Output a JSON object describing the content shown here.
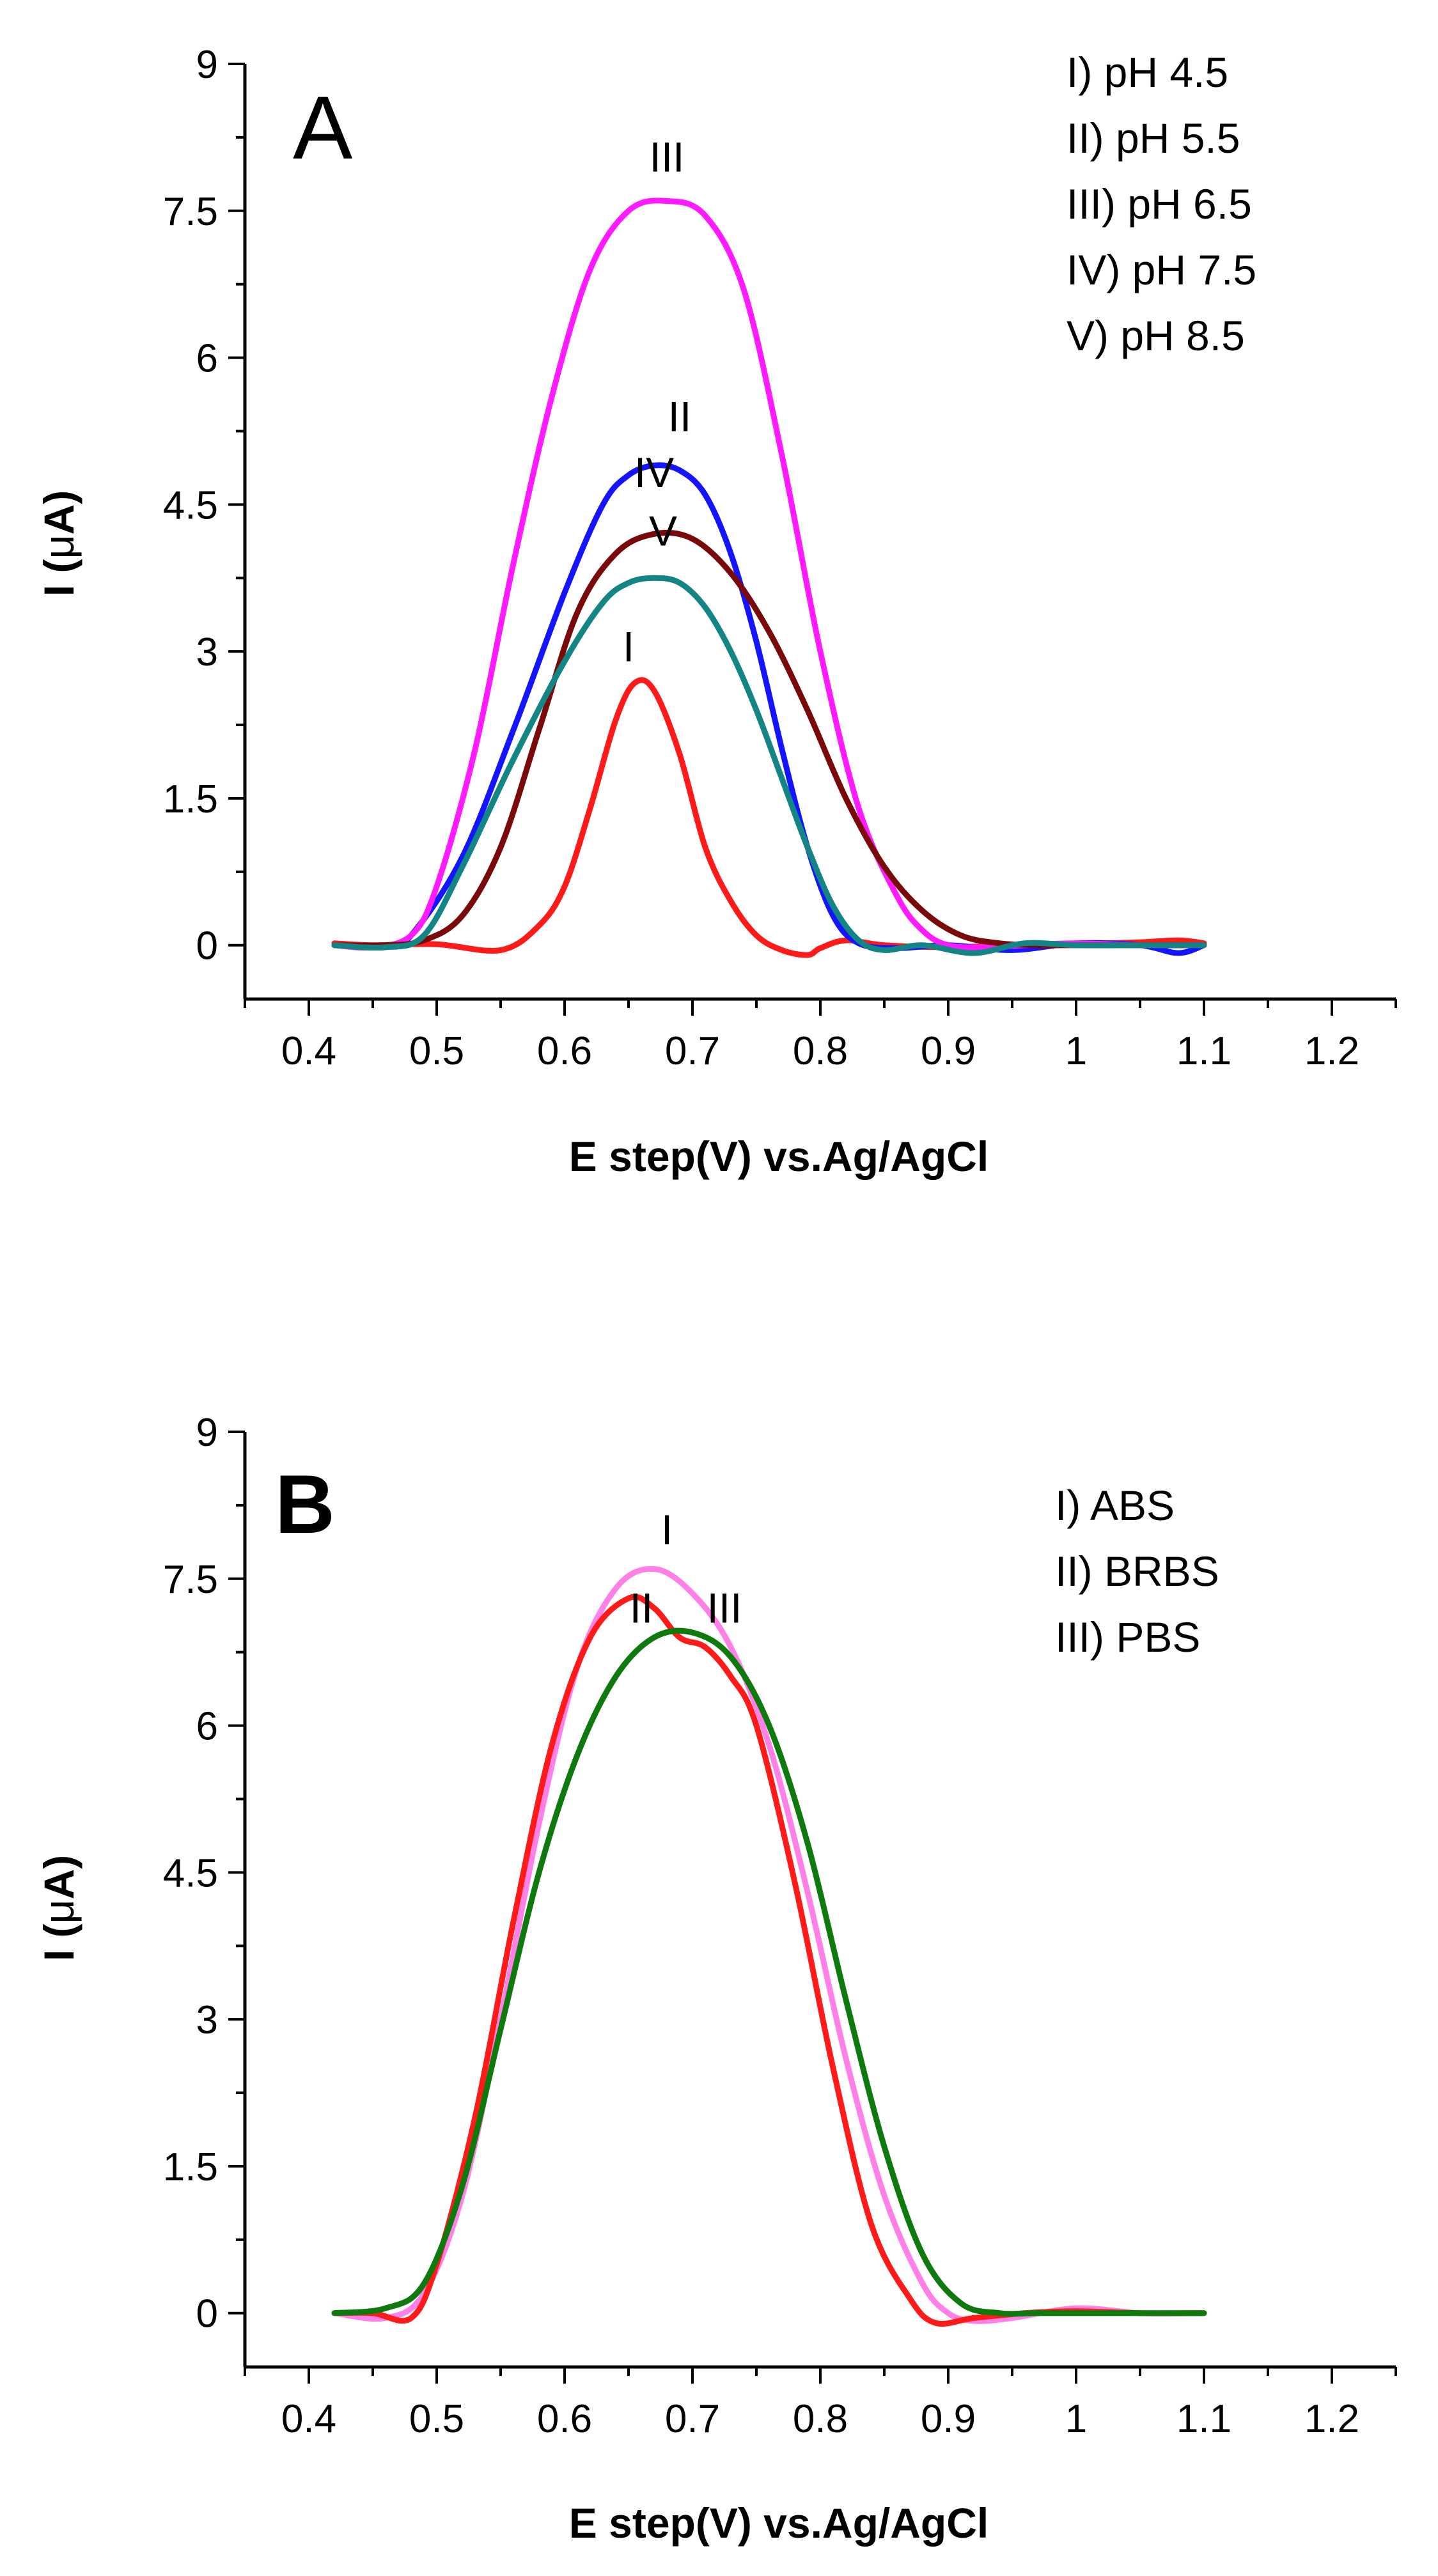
{
  "chart_data": [
    {
      "type": "line",
      "panel_letter": "A",
      "xlabel": "E step(V) vs.Ag/AgCl",
      "ylabel_prefix": "I (",
      "ylabel_greek": "μ",
      "ylabel_suffix": "A)",
      "xlim": [
        0.35,
        1.25
      ],
      "ylim": [
        -0.55,
        9
      ],
      "xticks": [
        0.4,
        0.5,
        0.6,
        0.7,
        0.8,
        0.9,
        1.0,
        1.1,
        1.2
      ],
      "xtick_labels": [
        "0.4",
        "0.5",
        "0.6",
        "0.7",
        "0.8",
        "0.9",
        "1",
        "1.1",
        "1.2"
      ],
      "yticks": [
        0,
        1.5,
        3,
        4.5,
        6,
        7.5,
        9
      ],
      "ytick_labels": [
        "0",
        "1.5",
        "3",
        "4.5",
        "6",
        "7.5",
        "9"
      ],
      "legend_placement": "top-right",
      "legend": [
        "I) pH 4.5",
        "II) pH 5.5",
        "III) pH 6.5",
        "IV) pH 7.5",
        "V) pH 8.5"
      ],
      "series": [
        {
          "name": "I",
          "color": "#ff1a1a",
          "label_at": [
            0.65,
            2.9
          ],
          "x": [
            0.42,
            0.45,
            0.5,
            0.55,
            0.58,
            0.6,
            0.62,
            0.64,
            0.655,
            0.67,
            0.69,
            0.71,
            0.73,
            0.75,
            0.77,
            0.79,
            0.8,
            0.82,
            0.85,
            0.9,
            0.95,
            1.0,
            1.05,
            1.08,
            1.1
          ],
          "y": [
            0.02,
            0.0,
            0.01,
            -0.05,
            0.2,
            0.6,
            1.4,
            2.3,
            2.68,
            2.6,
            1.95,
            1.0,
            0.45,
            0.1,
            -0.05,
            -0.1,
            -0.03,
            0.05,
            0.0,
            -0.02,
            0.0,
            0.01,
            0.03,
            0.05,
            0.02
          ]
        },
        {
          "name": "II",
          "color": "#1414ff",
          "label_at": [
            0.69,
            5.25
          ],
          "x": [
            0.42,
            0.46,
            0.48,
            0.52,
            0.56,
            0.6,
            0.63,
            0.65,
            0.67,
            0.69,
            0.71,
            0.73,
            0.75,
            0.77,
            0.79,
            0.81,
            0.83,
            0.86,
            0.9,
            0.95,
            1.0,
            1.05,
            1.08,
            1.1
          ],
          "y": [
            0.0,
            -0.02,
            0.1,
            0.9,
            2.2,
            3.6,
            4.5,
            4.8,
            4.9,
            4.85,
            4.6,
            4.0,
            3.1,
            2.0,
            1.0,
            0.3,
            0.02,
            -0.03,
            0.0,
            -0.05,
            0.02,
            0.0,
            -0.08,
            0.0
          ]
        },
        {
          "name": "III",
          "color": "#ff1aff",
          "label_at": [
            0.68,
            7.9
          ],
          "x": [
            0.42,
            0.45,
            0.48,
            0.5,
            0.53,
            0.56,
            0.59,
            0.62,
            0.65,
            0.68,
            0.71,
            0.74,
            0.77,
            0.8,
            0.83,
            0.86,
            0.88,
            0.9,
            0.93,
            0.96,
            1.0,
            1.05,
            1.1
          ],
          "y": [
            0.0,
            -0.02,
            0.1,
            0.6,
            2.0,
            3.9,
            5.6,
            6.9,
            7.5,
            7.6,
            7.45,
            6.7,
            5.0,
            3.0,
            1.4,
            0.5,
            0.15,
            0.0,
            -0.02,
            0.0,
            0.02,
            0.0,
            0.0
          ]
        },
        {
          "name": "IV",
          "color": "#7a0a0a",
          "label_at": [
            0.67,
            4.68
          ],
          "x": [
            0.42,
            0.46,
            0.49,
            0.52,
            0.55,
            0.58,
            0.61,
            0.64,
            0.67,
            0.7,
            0.73,
            0.76,
            0.79,
            0.82,
            0.85,
            0.88,
            0.91,
            0.94,
            0.97,
            1.0,
            1.05,
            1.1
          ],
          "y": [
            0.0,
            0.0,
            0.05,
            0.3,
            1.0,
            2.2,
            3.4,
            4.0,
            4.2,
            4.15,
            3.8,
            3.2,
            2.4,
            1.5,
            0.8,
            0.35,
            0.1,
            0.02,
            0.0,
            0.0,
            0.0,
            0.0
          ]
        },
        {
          "name": "V",
          "color": "#138585",
          "label_at": [
            0.677,
            4.08
          ],
          "x": [
            0.42,
            0.46,
            0.49,
            0.52,
            0.56,
            0.6,
            0.63,
            0.65,
            0.67,
            0.69,
            0.71,
            0.73,
            0.75,
            0.77,
            0.79,
            0.81,
            0.83,
            0.85,
            0.88,
            0.92,
            0.96,
            1.0,
            1.05,
            1.1
          ],
          "y": [
            0.0,
            -0.02,
            0.1,
            0.8,
            1.9,
            2.9,
            3.5,
            3.7,
            3.75,
            3.7,
            3.45,
            3.0,
            2.4,
            1.7,
            1.0,
            0.4,
            0.05,
            -0.05,
            0.0,
            -0.08,
            0.02,
            0.0,
            0.0,
            0.0
          ]
        }
      ]
    },
    {
      "type": "line",
      "panel_letter": "B",
      "xlabel": "E step(V) vs.Ag/AgCl",
      "ylabel_prefix": "I (",
      "ylabel_greek": "μ",
      "ylabel_suffix": "A)",
      "xlim": [
        0.35,
        1.25
      ],
      "ylim": [
        -0.55,
        9
      ],
      "xticks": [
        0.4,
        0.5,
        0.6,
        0.7,
        0.8,
        0.9,
        1.0,
        1.1,
        1.2
      ],
      "xtick_labels": [
        "0.4",
        "0.5",
        "0.6",
        "0.7",
        "0.8",
        "0.9",
        "1",
        "1.1",
        "1.2"
      ],
      "yticks": [
        0,
        1.5,
        3,
        4.5,
        6,
        7.5,
        9
      ],
      "ytick_labels": [
        "0",
        "1.5",
        "3",
        "4.5",
        "6",
        "7.5",
        "9"
      ],
      "legend_placement": "top-right",
      "legend": [
        "I) ABS",
        "II) BRBS",
        "III) PBS"
      ],
      "series": [
        {
          "name": "I",
          "color": "#ff80e6",
          "label_at": [
            0.68,
            7.85
          ],
          "x": [
            0.42,
            0.46,
            0.49,
            0.52,
            0.55,
            0.58,
            0.61,
            0.64,
            0.67,
            0.7,
            0.73,
            0.76,
            0.79,
            0.82,
            0.85,
            0.88,
            0.9,
            0.92,
            0.95,
            1.0,
            1.05,
            1.1
          ],
          "y": [
            0.0,
            -0.05,
            0.2,
            1.2,
            3.0,
            5.0,
            6.6,
            7.4,
            7.6,
            7.35,
            6.8,
            5.8,
            4.3,
            2.6,
            1.2,
            0.3,
            0.0,
            -0.08,
            -0.05,
            0.05,
            0.0,
            0.0
          ]
        },
        {
          "name": "II",
          "color": "#ff1a1a",
          "label_at": [
            0.66,
            7.05
          ],
          "x": [
            0.42,
            0.45,
            0.48,
            0.5,
            0.53,
            0.56,
            0.59,
            0.62,
            0.65,
            0.67,
            0.69,
            0.71,
            0.73,
            0.75,
            0.78,
            0.81,
            0.84,
            0.87,
            0.89,
            0.92,
            0.96,
            1.0,
            1.05,
            1.1
          ],
          "y": [
            0.0,
            0.0,
            -0.05,
            0.5,
            2.0,
            4.0,
            5.8,
            6.9,
            7.3,
            7.2,
            6.9,
            6.8,
            6.5,
            6.0,
            4.4,
            2.5,
            0.9,
            0.15,
            -0.1,
            -0.05,
            0.0,
            0.02,
            0.0,
            0.0
          ]
        },
        {
          "name": "III",
          "color": "#0e7a0e",
          "label_at": [
            0.725,
            7.05
          ],
          "x": [
            0.42,
            0.46,
            0.49,
            0.52,
            0.55,
            0.58,
            0.61,
            0.64,
            0.67,
            0.7,
            0.73,
            0.76,
            0.79,
            0.82,
            0.85,
            0.88,
            0.91,
            0.94,
            0.97,
            1.0,
            1.05,
            1.1
          ],
          "y": [
            0.0,
            0.05,
            0.3,
            1.3,
            2.9,
            4.5,
            5.7,
            6.5,
            6.9,
            6.95,
            6.7,
            6.0,
            4.8,
            3.2,
            1.7,
            0.6,
            0.1,
            0.0,
            0.0,
            0.0,
            0.0,
            0.0
          ]
        }
      ]
    }
  ]
}
